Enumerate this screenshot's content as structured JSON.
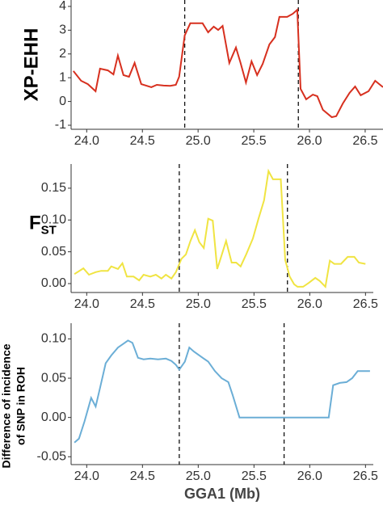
{
  "chart_data": [
    {
      "type": "line",
      "ylabel": "XP-EHH",
      "color": "#d7301f",
      "x": [
        23.88,
        23.95,
        24.01,
        24.08,
        24.12,
        24.19,
        24.24,
        24.28,
        24.33,
        24.38,
        24.43,
        24.49,
        24.58,
        24.63,
        24.69,
        24.75,
        24.8,
        24.83,
        24.88,
        24.93,
        25.04,
        25.09,
        25.14,
        25.18,
        25.22,
        25.28,
        25.34,
        25.38,
        25.43,
        25.48,
        25.53,
        25.58,
        25.64,
        25.69,
        25.73,
        25.8,
        25.85,
        25.89,
        25.92,
        25.97,
        26.03,
        26.07,
        26.12,
        26.2,
        26.24,
        26.3,
        26.36,
        26.41,
        26.46,
        26.53,
        26.59,
        26.66
      ],
      "values": [
        1.28,
        0.87,
        0.73,
        0.43,
        1.38,
        1.31,
        1.14,
        1.93,
        1.11,
        1.04,
        1.62,
        0.73,
        0.6,
        0.7,
        0.67,
        0.66,
        0.7,
        1.04,
        2.78,
        3.29,
        3.29,
        2.91,
        3.15,
        3.01,
        3.18,
        1.62,
        2.27,
        1.65,
        0.8,
        1.69,
        1.11,
        1.58,
        2.4,
        2.71,
        3.56,
        3.56,
        3.69,
        3.86,
        0.53,
        0.09,
        0.29,
        0.22,
        -0.35,
        -0.66,
        -0.62,
        -0.08,
        0.36,
        0.63,
        0.26,
        0.43,
        0.87,
        0.6
      ],
      "xlim": [
        23.86,
        26.66
      ],
      "ylim": [
        -1.17,
        4.27
      ],
      "xticks": [
        {
          "value": 24,
          "label": "24.0"
        },
        24.5,
        {
          "value": 25,
          "label": "25.0"
        },
        25.5,
        {
          "value": 26,
          "label": "26.0"
        },
        26.5
      ],
      "yticks": [
        -1,
        0,
        1,
        2,
        3,
        4
      ],
      "vlines": [
        24.88,
        25.9
      ]
    },
    {
      "type": "line",
      "ylabel": "F",
      "ylabel_sub": "ST",
      "color": "#f0e442",
      "x": [
        23.89,
        23.97,
        24.02,
        24.08,
        24.13,
        24.19,
        24.22,
        24.28,
        24.32,
        24.36,
        24.42,
        24.47,
        24.51,
        24.57,
        24.62,
        24.67,
        24.71,
        24.76,
        24.8,
        24.85,
        24.89,
        24.93,
        24.97,
        25.01,
        25.05,
        25.09,
        25.13,
        25.17,
        25.2,
        25.25,
        25.3,
        25.34,
        25.38,
        25.43,
        25.49,
        25.54,
        25.59,
        25.63,
        25.67,
        25.72,
        25.74,
        25.78,
        25.82,
        25.86,
        25.89,
        25.94,
        25.99,
        26.05,
        26.09,
        26.14,
        26.18,
        26.22,
        26.28,
        26.34,
        26.4,
        26.44,
        26.5
      ],
      "values": [
        0.015,
        0.024,
        0.014,
        0.018,
        0.02,
        0.02,
        0.027,
        0.023,
        0.032,
        0.011,
        0.011,
        0.005,
        0.014,
        0.011,
        0.014,
        0.008,
        0.014,
        0.008,
        0.018,
        0.039,
        0.046,
        0.067,
        0.084,
        0.065,
        0.056,
        0.102,
        0.099,
        0.023,
        0.039,
        0.067,
        0.033,
        0.033,
        0.027,
        0.046,
        0.071,
        0.102,
        0.131,
        0.177,
        0.164,
        0.164,
        0.164,
        0.037,
        0.011,
        -0.001,
        -0.005,
        -0.005,
        0.001,
        0.009,
        0.004,
        -0.005,
        0.036,
        0.031,
        0.031,
        0.042,
        0.042,
        0.033,
        0.031
      ],
      "xlim": [
        23.86,
        26.57
      ],
      "ylim": [
        -0.014,
        0.188
      ],
      "xticks": [
        {
          "value": 24,
          "label": "24.0"
        },
        24.5,
        {
          "value": 25,
          "label": "25.0"
        },
        25.5,
        {
          "value": 26,
          "label": "26.0"
        },
        26.5
      ],
      "yticks": [
        {
          "value": 0,
          "label": "0.00"
        },
        0.05,
        {
          "value": 0.1,
          "label": "0.10"
        },
        0.15
      ],
      "vlines": [
        24.83,
        25.8
      ]
    },
    {
      "type": "line",
      "ylabel": [
        "Difference of incidence",
        "of SNP in ROH"
      ],
      "xlabel": "GGA1 (Mb)",
      "color": "#6baed6",
      "x": [
        23.89,
        23.93,
        23.98,
        24.04,
        24.08,
        24.12,
        24.17,
        24.22,
        24.28,
        24.33,
        24.37,
        24.41,
        24.46,
        24.51,
        24.57,
        24.64,
        24.71,
        24.76,
        24.8,
        24.83,
        24.88,
        24.92,
        24.96,
        25.04,
        25.09,
        25.15,
        25.21,
        25.27,
        25.31,
        25.37,
        26.17,
        26.21,
        26.27,
        26.33,
        26.38,
        26.43,
        26.54
      ],
      "values": [
        -0.032,
        -0.027,
        -0.005,
        0.025,
        0.014,
        0.038,
        0.069,
        0.079,
        0.089,
        0.094,
        0.098,
        0.095,
        0.076,
        0.074,
        0.075,
        0.074,
        0.075,
        0.072,
        0.067,
        0.061,
        0.071,
        0.089,
        0.084,
        0.076,
        0.071,
        0.059,
        0.05,
        0.045,
        0.028,
        0,
        0,
        0.041,
        0.044,
        0.045,
        0.05,
        0.059,
        0.059
      ],
      "xlim": [
        23.86,
        26.57
      ],
      "ylim": [
        -0.06,
        0.12
      ],
      "xticks": [
        {
          "value": 24,
          "label": "24.0"
        },
        24.5,
        {
          "value": 25,
          "label": "25.0"
        },
        25.5,
        {
          "value": 26,
          "label": "26.0"
        },
        26.5
      ],
      "yticks": [
        -0.05,
        {
          "value": 0,
          "label": "0.00"
        },
        0.05,
        {
          "value": 0.1,
          "label": "0.10"
        }
      ],
      "vlines": [
        24.83,
        25.77
      ]
    }
  ]
}
